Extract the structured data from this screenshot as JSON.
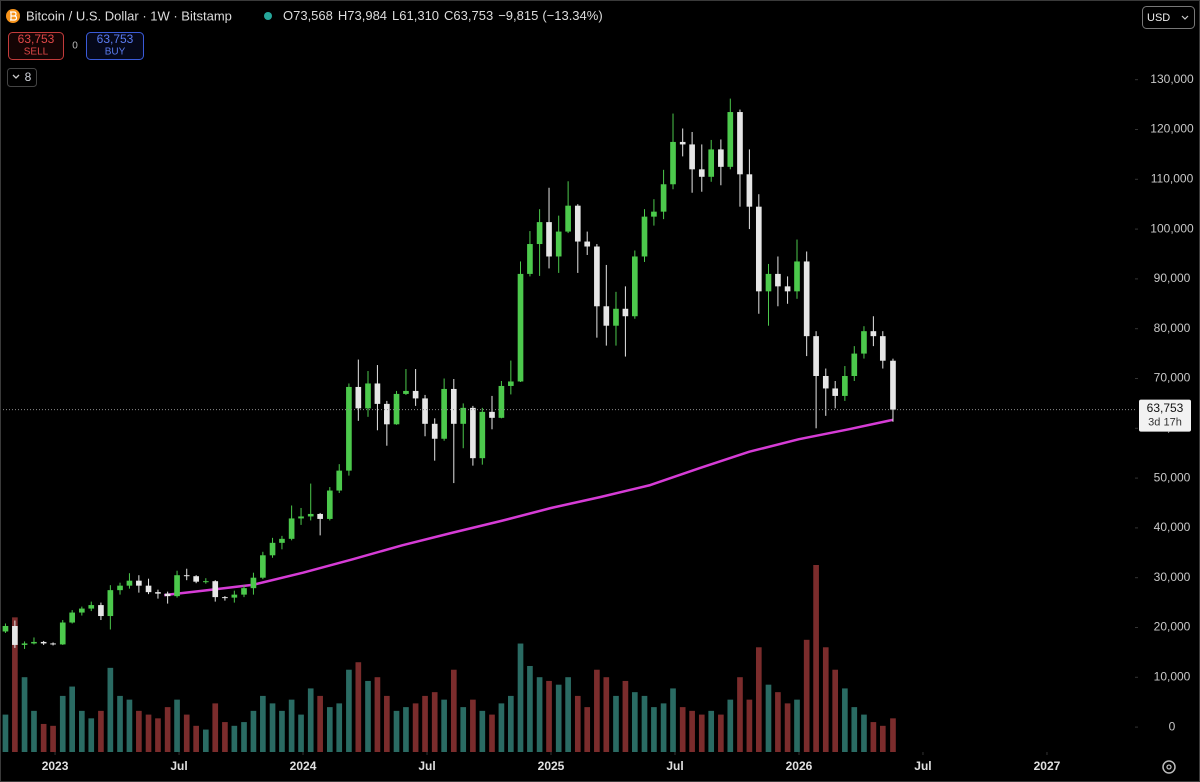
{
  "chart_data": {
    "type": "candlestick",
    "title": "Bitcoin / U.S. Dollar · 1W · Bitstamp",
    "readout": {
      "open": {
        "value": 73568,
        "label": "O73,568"
      },
      "high": {
        "value": 73984,
        "label": "H73,984"
      },
      "low": {
        "value": 61310,
        "label": "L61,310"
      },
      "close": {
        "value": 63753,
        "label": "C63,753"
      },
      "change": {
        "value": -9815,
        "label": "−9,815"
      },
      "change_percent": {
        "value": -13.34,
        "label": "(−13.34%)"
      }
    },
    "sell": {
      "price": {
        "value": 63753,
        "label": "63,753"
      },
      "text": "SELL"
    },
    "spread": 0,
    "buy": {
      "price": {
        "value": 63753,
        "label": "63,753"
      },
      "text": "BUY"
    },
    "indicator_count": 8,
    "currency": "USD",
    "last_price": {
      "value": 63753,
      "label": "63,753"
    },
    "countdown": "3d 17h",
    "up_color": "#4cc94c",
    "down_color": "#e6e6e6",
    "volume_up_color": "#2a6b63",
    "volume_down_color": "#7b2c2c",
    "grid": false,
    "xlim": [
      2022.778,
      2027.355
    ],
    "xticks": [
      2023,
      {
        "value": 2023.5,
        "label": "Jul"
      },
      2024,
      {
        "value": 2024.5,
        "label": "Jul"
      },
      2025,
      {
        "value": 2025.5,
        "label": "Jul"
      },
      2026,
      {
        "value": 2026.5,
        "label": "Jul"
      },
      2027
    ],
    "ylim": [
      -5000,
      146000
    ],
    "yticks": [
      0,
      {
        "value": 10000,
        "label": "10,000"
      },
      {
        "value": 20000,
        "label": "20,000"
      },
      {
        "value": 30000,
        "label": "30,000"
      },
      {
        "value": 40000,
        "label": "40,000"
      },
      {
        "value": 50000,
        "label": "50,000"
      },
      {
        "value": 60000,
        "label": "60,000"
      },
      {
        "value": 70000,
        "label": "70,000"
      },
      {
        "value": 80000,
        "label": "80,000"
      },
      {
        "value": 90000,
        "label": "90,000"
      },
      {
        "value": 100000,
        "label": "100,000"
      },
      {
        "value": 110000,
        "label": "110,000"
      },
      {
        "value": 120000,
        "label": "120,000"
      },
      {
        "value": 130000,
        "label": "130,000"
      }
    ],
    "volume_ylim": [
      0,
      100
    ],
    "x": [
      2022.8,
      2022.838,
      2022.877,
      2022.915,
      2022.954,
      2022.992,
      2023.031,
      2023.069,
      2023.108,
      2023.146,
      2023.185,
      2023.223,
      2023.262,
      2023.3,
      2023.338,
      2023.377,
      2023.415,
      2023.454,
      2023.492,
      2023.531,
      2023.569,
      2023.608,
      2023.646,
      2023.685,
      2023.723,
      2023.762,
      2023.8,
      2023.838,
      2023.877,
      2023.915,
      2023.954,
      2023.992,
      2024.031,
      2024.069,
      2024.108,
      2024.146,
      2024.185,
      2024.223,
      2024.262,
      2024.3,
      2024.338,
      2024.377,
      2024.415,
      2024.454,
      2024.492,
      2024.531,
      2024.569,
      2024.608,
      2024.646,
      2024.685,
      2024.723,
      2024.762,
      2024.8,
      2024.838,
      2024.877,
      2024.915,
      2024.954,
      2024.992,
      2025.031,
      2025.069,
      2025.108,
      2025.146,
      2025.185,
      2025.223,
      2025.262,
      2025.3,
      2025.338,
      2025.377,
      2025.415,
      2025.454,
      2025.492,
      2025.531,
      2025.569,
      2025.608,
      2025.646,
      2025.685,
      2025.723,
      2025.762,
      2025.8,
      2025.838,
      2025.877,
      2025.915,
      2025.954,
      2025.992,
      2026.031,
      2026.069,
      2026.108,
      2026.146,
      2026.185,
      2026.223,
      2026.262,
      2026.3,
      2026.338,
      2026.379
    ],
    "open": [
      19200,
      20300,
      16500,
      16800,
      17100,
      16800,
      16600,
      21000,
      23000,
      23800,
      24500,
      22300,
      27500,
      28400,
      29400,
      28400,
      27100,
      26800,
      26300,
      30500,
      30300,
      29200,
      29300,
      26100,
      26000,
      26600,
      27900,
      30000,
      34500,
      37000,
      37800,
      41900,
      42300,
      42800,
      41800,
      47500,
      51500,
      68300,
      64000,
      69000,
      64900,
      60800,
      66900,
      67500,
      66000,
      60900,
      57900,
      67900,
      60900,
      64100,
      54000,
      63300,
      62100,
      68500,
      69400,
      91000,
      97000,
      101400,
      94500,
      99500,
      104700,
      97500,
      96500,
      84500,
      80600,
      84000,
      82500,
      94500,
      102500,
      103500,
      109000,
      117500,
      117000,
      112000,
      110500,
      116000,
      112500,
      123500,
      111000,
      104500,
      87500,
      91000,
      88500,
      87500,
      93500,
      78500,
      70500,
      68000,
      66500,
      70500,
      75000,
      79500,
      78500,
      73568
    ],
    "high": [
      20800,
      21400,
      17200,
      18000,
      17300,
      17000,
      21500,
      23500,
      24200,
      25200,
      25000,
      28500,
      29000,
      30900,
      30500,
      29800,
      27600,
      27200,
      31400,
      31800,
      30500,
      29900,
      29500,
      26300,
      27400,
      28500,
      31000,
      35200,
      38000,
      38400,
      44500,
      44000,
      48900,
      43000,
      48200,
      52800,
      69000,
      73800,
      71500,
      72700,
      65500,
      67500,
      71900,
      71900,
      66700,
      62000,
      70000,
      69900,
      65000,
      64500,
      64100,
      66500,
      69500,
      73600,
      93500,
      99600,
      104000,
      108300,
      102700,
      109600,
      105000,
      99500,
      97000,
      92800,
      87400,
      88500,
      95700,
      104000,
      106000,
      111900,
      123200,
      120200,
      119500,
      117000,
      117900,
      118000,
      126200,
      124000,
      116000,
      107000,
      93000,
      94500,
      90500,
      97900,
      95500,
      79500,
      72000,
      69500,
      72500,
      76500,
      80500,
      82500,
      79500,
      73984
    ],
    "low": [
      18900,
      15900,
      15700,
      16600,
      16500,
      16400,
      16500,
      20800,
      22400,
      23300,
      21500,
      19600,
      26600,
      27800,
      27000,
      26700,
      25800,
      24800,
      26000,
      29500,
      28900,
      28800,
      25200,
      25400,
      25000,
      26100,
      26600,
      29700,
      34000,
      35700,
      37500,
      40600,
      41500,
      38500,
      41500,
      47000,
      50500,
      61500,
      62300,
      59600,
      56500,
      60700,
      66700,
      64500,
      58400,
      53500,
      57500,
      49000,
      56000,
      52500,
      52700,
      59800,
      62000,
      66800,
      69300,
      90500,
      90600,
      92100,
      91200,
      99200,
      91200,
      94800,
      78200,
      76600,
      76600,
      74400,
      82000,
      93400,
      100700,
      102000,
      108000,
      114600,
      107300,
      107500,
      109500,
      108800,
      112000,
      104500,
      100000,
      83000,
      80600,
      84500,
      85000,
      86000,
      74500,
      60000,
      62500,
      64000,
      65500,
      69500,
      74000,
      76500,
      72000,
      61310
    ],
    "close": [
      20300,
      16500,
      16800,
      17100,
      16800,
      16600,
      21000,
      23000,
      23800,
      24500,
      22300,
      27500,
      28400,
      29400,
      28400,
      27100,
      26800,
      26300,
      30500,
      30300,
      29200,
      29300,
      26100,
      26000,
      26600,
      27900,
      30000,
      34500,
      37000,
      37800,
      41900,
      42300,
      42800,
      41800,
      47500,
      51500,
      68300,
      64000,
      69000,
      64900,
      60800,
      66900,
      67500,
      66000,
      60900,
      57900,
      67900,
      60900,
      64100,
      54000,
      63300,
      62100,
      68500,
      69400,
      91000,
      97000,
      101400,
      94500,
      99500,
      104700,
      97500,
      96500,
      84500,
      80600,
      84000,
      82500,
      94500,
      102500,
      103500,
      109000,
      117500,
      117000,
      112000,
      110500,
      116000,
      112500,
      123500,
      111000,
      104500,
      87500,
      91000,
      88500,
      87500,
      93500,
      78500,
      70500,
      68000,
      66500,
      70500,
      75000,
      79500,
      78500,
      73568,
      63753
    ],
    "volume": [
      20,
      72,
      40,
      22,
      15,
      14,
      30,
      35,
      22,
      18,
      22,
      45,
      30,
      28,
      22,
      20,
      18,
      24,
      28,
      20,
      14,
      12,
      26,
      16,
      14,
      16,
      22,
      30,
      26,
      22,
      28,
      20,
      34,
      30,
      24,
      26,
      44,
      48,
      38,
      40,
      30,
      22,
      24,
      26,
      30,
      32,
      28,
      44,
      24,
      28,
      22,
      20,
      26,
      30,
      58,
      46,
      40,
      38,
      36,
      40,
      30,
      24,
      44,
      40,
      30,
      38,
      32,
      30,
      24,
      26,
      34,
      24,
      22,
      20,
      22,
      20,
      28,
      40,
      28,
      56,
      36,
      32,
      26,
      28,
      60,
      100,
      56,
      44,
      34,
      24,
      20,
      16,
      14,
      18
    ],
    "ma": {
      "color": "#d63cd6",
      "x": [
        2023.44,
        2023.6,
        2023.8,
        2024.0,
        2024.2,
        2024.4,
        2024.6,
        2024.8,
        2025.0,
        2025.2,
        2025.4,
        2025.6,
        2025.8,
        2026.0,
        2026.2,
        2026.379
      ],
      "values": [
        26500,
        27400,
        28600,
        31000,
        33700,
        36500,
        39000,
        41400,
        44000,
        46200,
        48600,
        52000,
        55300,
        57800,
        59800,
        61700
      ]
    }
  }
}
